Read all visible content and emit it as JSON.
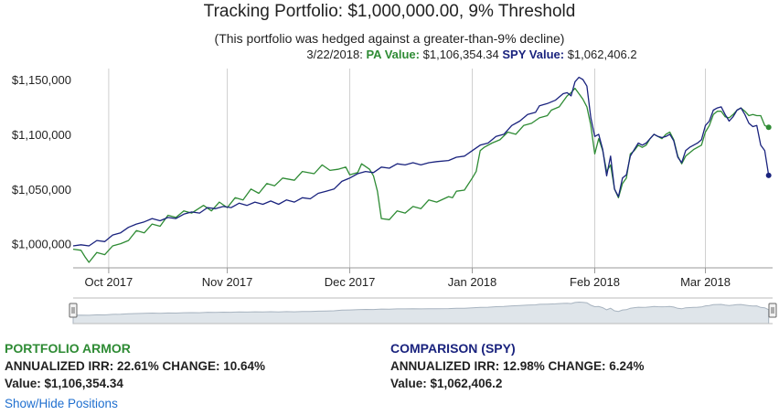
{
  "header": {
    "title": "Tracking Portfolio: $1,000,000.00, 9% Threshold",
    "subtitle": "(This portfolio was hedged against a greater-than-9% decline)",
    "date": "3/22/2018:",
    "pa_label": "PA Value:",
    "pa_value": "$1,106,354.34",
    "spy_label": "SPY Value:",
    "spy_value": "$1,062,406.2"
  },
  "colors": {
    "pa": "#2e8b34",
    "spy": "#1a237e",
    "grid": "#cfcfcf",
    "navigator_fill": "#dfe5ea",
    "navigator_line": "#a8b4c0",
    "link": "#1f6fcf"
  },
  "chart_data": {
    "type": "line",
    "title": "Tracking Portfolio: $1,000,000.00, 9% Threshold",
    "x_ticks": [
      "Oct 2017",
      "Nov 2017",
      "Dec 2017",
      "Jan 2018",
      "Feb 2018",
      "Mar 2018"
    ],
    "y_ticks": [
      "$1,000,000",
      "$1,050,000",
      "$1,100,000",
      "$1,150,000"
    ],
    "ylim": [
      978000,
      1160000
    ],
    "x_range_days": [
      0,
      177
    ],
    "grid": "vertical",
    "series": [
      {
        "name": "PORTFOLIO ARMOR",
        "points": [
          [
            0,
            995000
          ],
          [
            2,
            994000
          ],
          [
            3,
            988000
          ],
          [
            4,
            983000
          ],
          [
            6,
            992000
          ],
          [
            8,
            990000
          ],
          [
            10,
            998000
          ],
          [
            12,
            1000000
          ],
          [
            14,
            1003000
          ],
          [
            16,
            1012000
          ],
          [
            18,
            1010000
          ],
          [
            20,
            1018000
          ],
          [
            22,
            1016000
          ],
          [
            24,
            1026000
          ],
          [
            26,
            1024000
          ],
          [
            28,
            1030000
          ],
          [
            30,
            1028000
          ],
          [
            33,
            1035000
          ],
          [
            35,
            1030000
          ],
          [
            37,
            1038000
          ],
          [
            39,
            1033000
          ],
          [
            41,
            1042000
          ],
          [
            43,
            1040000
          ],
          [
            45,
            1050000
          ],
          [
            47,
            1046000
          ],
          [
            49,
            1055000
          ],
          [
            51,
            1053000
          ],
          [
            53,
            1060000
          ],
          [
            56,
            1058000
          ],
          [
            58,
            1066000
          ],
          [
            61,
            1064000
          ],
          [
            63,
            1072000
          ],
          [
            65,
            1067000
          ],
          [
            67,
            1068000
          ],
          [
            69,
            1070000
          ],
          [
            70,
            1063000
          ],
          [
            72,
            1065000
          ],
          [
            73,
            1073000
          ],
          [
            75,
            1068000
          ],
          [
            76,
            1062000
          ],
          [
            77,
            1048000
          ],
          [
            78,
            1023000
          ],
          [
            80,
            1022000
          ],
          [
            82,
            1030000
          ],
          [
            84,
            1028000
          ],
          [
            86,
            1034000
          ],
          [
            88,
            1032000
          ],
          [
            90,
            1040000
          ],
          [
            92,
            1038000
          ],
          [
            95,
            1043000
          ],
          [
            96,
            1042000
          ],
          [
            97,
            1048000
          ],
          [
            99,
            1049000
          ],
          [
            101,
            1060000
          ],
          [
            102,
            1066000
          ],
          [
            103,
            1085000
          ],
          [
            104,
            1088000
          ],
          [
            106,
            1092000
          ],
          [
            108,
            1095000
          ],
          [
            110,
            1102000
          ],
          [
            112,
            1100000
          ],
          [
            114,
            1108000
          ],
          [
            116,
            1110000
          ],
          [
            118,
            1115000
          ],
          [
            120,
            1117000
          ],
          [
            121,
            1122000
          ],
          [
            123,
            1125000
          ],
          [
            125,
            1135000
          ],
          [
            126,
            1138000
          ],
          [
            127,
            1142000
          ],
          [
            128,
            1137000
          ],
          [
            129,
            1132000
          ],
          [
            130,
            1125000
          ],
          [
            131,
            1108000
          ],
          [
            132,
            1082000
          ],
          [
            133,
            1096000
          ],
          [
            134,
            1085000
          ],
          [
            135,
            1066000
          ],
          [
            136,
            1072000
          ],
          [
            137,
            1050000
          ],
          [
            138,
            1042000
          ],
          [
            139,
            1055000
          ],
          [
            140,
            1060000
          ],
          [
            141,
            1082000
          ],
          [
            142,
            1085000
          ],
          [
            143,
            1090000
          ],
          [
            144,
            1088000
          ],
          [
            145,
            1090000
          ],
          [
            146,
            1096000
          ],
          [
            147,
            1100000
          ],
          [
            148,
            1098000
          ],
          [
            149,
            1096000
          ],
          [
            150,
            1100000
          ],
          [
            151,
            1102000
          ],
          [
            152,
            1095000
          ],
          [
            153,
            1080000
          ],
          [
            154,
            1073000
          ],
          [
            155,
            1080000
          ],
          [
            156,
            1083000
          ],
          [
            157,
            1086000
          ],
          [
            158,
            1088000
          ],
          [
            159,
            1090000
          ],
          [
            160,
            1102000
          ],
          [
            161,
            1108000
          ],
          [
            162,
            1118000
          ],
          [
            163,
            1121000
          ],
          [
            164,
            1121000
          ],
          [
            165,
            1116000
          ],
          [
            166,
            1115000
          ],
          [
            167,
            1118000
          ],
          [
            168,
            1122000
          ],
          [
            169,
            1124000
          ],
          [
            170,
            1121000
          ],
          [
            171,
            1117000
          ],
          [
            172,
            1118000
          ],
          [
            173,
            1117000
          ],
          [
            174,
            1117000
          ],
          [
            175,
            1108000
          ],
          [
            176,
            1106354
          ]
        ]
      },
      {
        "name": "COMPARISON (SPY)",
        "points": [
          [
            0,
            998000
          ],
          [
            2,
            999000
          ],
          [
            4,
            998000
          ],
          [
            6,
            1003000
          ],
          [
            8,
            1002000
          ],
          [
            10,
            1008000
          ],
          [
            12,
            1010000
          ],
          [
            14,
            1015000
          ],
          [
            16,
            1018000
          ],
          [
            18,
            1020000
          ],
          [
            20,
            1023000
          ],
          [
            22,
            1021000
          ],
          [
            24,
            1024000
          ],
          [
            26,
            1023000
          ],
          [
            28,
            1027000
          ],
          [
            30,
            1029000
          ],
          [
            32,
            1028000
          ],
          [
            34,
            1033000
          ],
          [
            36,
            1032000
          ],
          [
            38,
            1034000
          ],
          [
            40,
            1033000
          ],
          [
            42,
            1037000
          ],
          [
            44,
            1035000
          ],
          [
            46,
            1038000
          ],
          [
            48,
            1036000
          ],
          [
            50,
            1039000
          ],
          [
            52,
            1036000
          ],
          [
            54,
            1040000
          ],
          [
            56,
            1038000
          ],
          [
            58,
            1042000
          ],
          [
            60,
            1041000
          ],
          [
            62,
            1046000
          ],
          [
            64,
            1048000
          ],
          [
            66,
            1050000
          ],
          [
            68,
            1057000
          ],
          [
            70,
            1060000
          ],
          [
            72,
            1064000
          ],
          [
            74,
            1066000
          ],
          [
            76,
            1065000
          ],
          [
            78,
            1070000
          ],
          [
            80,
            1069000
          ],
          [
            82,
            1073000
          ],
          [
            84,
            1072000
          ],
          [
            86,
            1074000
          ],
          [
            88,
            1072000
          ],
          [
            90,
            1074000
          ],
          [
            92,
            1075000
          ],
          [
            95,
            1076000
          ],
          [
            97,
            1079000
          ],
          [
            99,
            1080000
          ],
          [
            101,
            1085000
          ],
          [
            103,
            1090000
          ],
          [
            105,
            1092000
          ],
          [
            107,
            1098000
          ],
          [
            109,
            1100000
          ],
          [
            111,
            1108000
          ],
          [
            113,
            1112000
          ],
          [
            115,
            1118000
          ],
          [
            117,
            1120000
          ],
          [
            118,
            1126000
          ],
          [
            120,
            1128000
          ],
          [
            122,
            1131000
          ],
          [
            124,
            1137000
          ],
          [
            125,
            1138000
          ],
          [
            126,
            1135000
          ],
          [
            127,
            1148000
          ],
          [
            128,
            1152000
          ],
          [
            129,
            1150000
          ],
          [
            130,
            1144000
          ],
          [
            131,
            1115000
          ],
          [
            132,
            1098000
          ],
          [
            133,
            1100000
          ],
          [
            134,
            1086000
          ],
          [
            135,
            1062000
          ],
          [
            136,
            1080000
          ],
          [
            137,
            1050000
          ],
          [
            138,
            1043000
          ],
          [
            139,
            1060000
          ],
          [
            140,
            1063000
          ],
          [
            141,
            1080000
          ],
          [
            142,
            1086000
          ],
          [
            143,
            1092000
          ],
          [
            144,
            1090000
          ],
          [
            145,
            1092000
          ],
          [
            146,
            1096000
          ],
          [
            147,
            1100000
          ],
          [
            148,
            1098000
          ],
          [
            149,
            1097000
          ],
          [
            150,
            1098000
          ],
          [
            151,
            1100000
          ],
          [
            152,
            1094000
          ],
          [
            153,
            1079000
          ],
          [
            154,
            1074000
          ],
          [
            155,
            1085000
          ],
          [
            156,
            1088000
          ],
          [
            157,
            1090000
          ],
          [
            158,
            1092000
          ],
          [
            159,
            1095000
          ],
          [
            160,
            1108000
          ],
          [
            161,
            1112000
          ],
          [
            162,
            1122000
          ],
          [
            163,
            1124000
          ],
          [
            164,
            1125000
          ],
          [
            165,
            1118000
          ],
          [
            166,
            1112000
          ],
          [
            167,
            1116000
          ],
          [
            168,
            1122000
          ],
          [
            169,
            1124000
          ],
          [
            170,
            1118000
          ],
          [
            171,
            1110000
          ],
          [
            172,
            1107000
          ],
          [
            173,
            1108000
          ],
          [
            174,
            1090000
          ],
          [
            175,
            1085000
          ],
          [
            176,
            1062406
          ]
        ]
      }
    ]
  },
  "stats": {
    "pa": {
      "heading": "PORTFOLIO ARMOR",
      "irr": "ANNUALIZED IRR: 22.61% CHANGE: 10.64%",
      "value": "Value: $1,106,354.34"
    },
    "spy": {
      "heading": "COMPARISON (SPY)",
      "irr": "ANNUALIZED IRR: 12.98% CHANGE: 6.24%",
      "value": "Value: $1,062,406.2"
    }
  },
  "toggle_link": "Show/Hide Positions"
}
